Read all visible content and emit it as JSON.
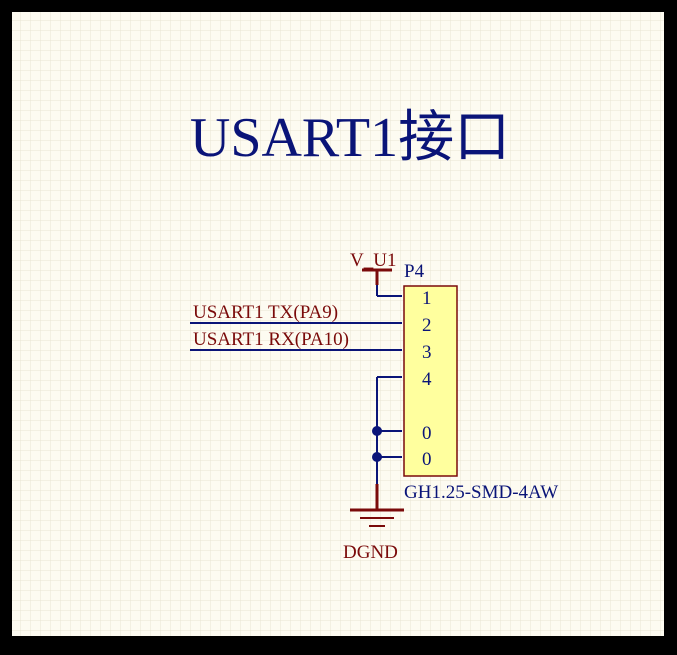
{
  "diagram": {
    "title": "USART1接口",
    "power_label": "V_U1",
    "ground_label": "DGND",
    "net_tx": "USART1 TX(PA9)",
    "net_rx": "USART1 RX(PA10)",
    "connector": {
      "designator": "P4",
      "part": "GH1.25-SMD-4AW",
      "pins": [
        "1",
        "2",
        "3",
        "4",
        "0",
        "0"
      ]
    },
    "colors": {
      "sheet": "#fdfbf1",
      "grid": "#e9e4d4",
      "wire": "#0a1478",
      "power": "#7a0a0a",
      "connector_fill": "#ffff9e",
      "connector_border": "#7a0a0a",
      "junction": "#0a1478"
    }
  }
}
